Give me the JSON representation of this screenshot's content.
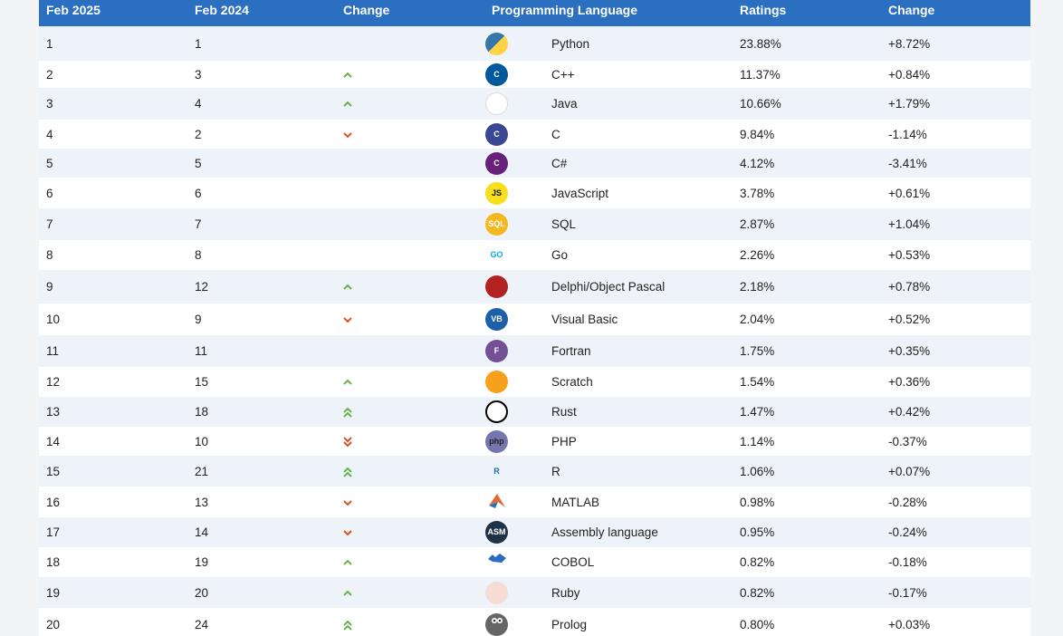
{
  "headers": {
    "rank_now": "Feb 2025",
    "rank_prev": "Feb 2024",
    "change": "Change",
    "language": "Programming Language",
    "ratings": "Ratings",
    "change2": "Change"
  },
  "rows": [
    {
      "now": "1",
      "prev": "1",
      "trend": "none",
      "icon": "python-icon",
      "name": "Python",
      "rating": "23.88%",
      "delta": "+8.72%"
    },
    {
      "now": "2",
      "prev": "3",
      "trend": "up",
      "icon": "cpp-icon",
      "name": "C++",
      "rating": "11.37%",
      "delta": "+0.84%"
    },
    {
      "now": "3",
      "prev": "4",
      "trend": "up",
      "icon": "java-icon",
      "name": "Java",
      "rating": "10.66%",
      "delta": "+1.79%"
    },
    {
      "now": "4",
      "prev": "2",
      "trend": "down",
      "icon": "c-icon",
      "name": "C",
      "rating": "9.84%",
      "delta": "-1.14%"
    },
    {
      "now": "5",
      "prev": "5",
      "trend": "none",
      "icon": "csharp-icon",
      "name": "C#",
      "rating": "4.12%",
      "delta": "-3.41%"
    },
    {
      "now": "6",
      "prev": "6",
      "trend": "none",
      "icon": "javascript-icon",
      "name": "JavaScript",
      "rating": "3.78%",
      "delta": "+0.61%"
    },
    {
      "now": "7",
      "prev": "7",
      "trend": "none",
      "icon": "sql-icon",
      "name": "SQL",
      "rating": "2.87%",
      "delta": "+1.04%"
    },
    {
      "now": "8",
      "prev": "8",
      "trend": "none",
      "icon": "go-icon",
      "name": "Go",
      "rating": "2.26%",
      "delta": "+0.53%"
    },
    {
      "now": "9",
      "prev": "12",
      "trend": "up",
      "icon": "delphi-icon",
      "name": "Delphi/Object Pascal",
      "rating": "2.18%",
      "delta": "+0.78%"
    },
    {
      "now": "10",
      "prev": "9",
      "trend": "down",
      "icon": "visual-basic-icon",
      "name": "Visual Basic",
      "rating": "2.04%",
      "delta": "+0.52%"
    },
    {
      "now": "11",
      "prev": "11",
      "trend": "none",
      "icon": "fortran-icon",
      "name": "Fortran",
      "rating": "1.75%",
      "delta": "+0.35%"
    },
    {
      "now": "12",
      "prev": "15",
      "trend": "up",
      "icon": "scratch-icon",
      "name": "Scratch",
      "rating": "1.54%",
      "delta": "+0.36%"
    },
    {
      "now": "13",
      "prev": "18",
      "trend": "up2",
      "icon": "rust-icon",
      "name": "Rust",
      "rating": "1.47%",
      "delta": "+0.42%"
    },
    {
      "now": "14",
      "prev": "10",
      "trend": "down2",
      "icon": "php-icon",
      "name": "PHP",
      "rating": "1.14%",
      "delta": "-0.37%"
    },
    {
      "now": "15",
      "prev": "21",
      "trend": "up2",
      "icon": "r-icon",
      "name": "R",
      "rating": "1.06%",
      "delta": "+0.07%"
    },
    {
      "now": "16",
      "prev": "13",
      "trend": "down",
      "icon": "matlab-icon",
      "name": "MATLAB",
      "rating": "0.98%",
      "delta": "-0.28%"
    },
    {
      "now": "17",
      "prev": "14",
      "trend": "down",
      "icon": "assembly-icon",
      "name": "Assembly language",
      "rating": "0.95%",
      "delta": "-0.24%"
    },
    {
      "now": "18",
      "prev": "19",
      "trend": "up",
      "icon": "cobol-icon",
      "name": "COBOL",
      "rating": "0.82%",
      "delta": "-0.18%"
    },
    {
      "now": "19",
      "prev": "20",
      "trend": "up",
      "icon": "ruby-icon",
      "name": "Ruby",
      "rating": "0.82%",
      "delta": "-0.17%"
    },
    {
      "now": "20",
      "prev": "24",
      "trend": "up2",
      "icon": "prolog-icon",
      "name": "Prolog",
      "rating": "0.80%",
      "delta": "+0.03%"
    }
  ],
  "icon_labels": {
    "javascript-icon": "JS",
    "sql-icon": "SQL",
    "go-icon": "GO",
    "visual-basic-icon": "VB",
    "fortran-icon": "F",
    "php-icon": "php",
    "r-icon": "R",
    "assembly-icon": "ASM",
    "c-icon": "C",
    "cpp-icon": "C",
    "csharp-icon": "C"
  },
  "colors": {
    "header_bg": "#2b6fc0",
    "up": "#6ab04c",
    "down": "#d9541e",
    "row_alt": "#eef3f9"
  }
}
